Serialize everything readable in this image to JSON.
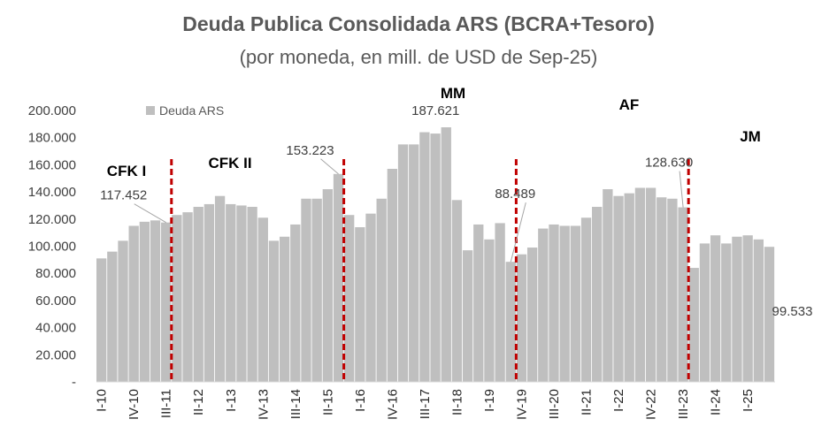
{
  "chart_data": {
    "type": "bar",
    "title": "Deuda Publica Consolidada ARS (BCRA+Tesoro)",
    "subtitle": "(por moneda, en mill. de USD de Sep-25)",
    "series": [
      {
        "name": "Deuda ARS",
        "values": [
          91000,
          96000,
          104000,
          115000,
          118000,
          119000,
          117452,
          123000,
          125000,
          129000,
          131000,
          137000,
          131000,
          130000,
          129000,
          121000,
          104000,
          107000,
          116000,
          135000,
          135000,
          142000,
          153223,
          123000,
          114000,
          124000,
          135000,
          157000,
          175000,
          175000,
          184000,
          183000,
          187621,
          134000,
          97000,
          116000,
          105000,
          117000,
          88489,
          94000,
          99000,
          113000,
          116000,
          115000,
          115000,
          121000,
          129000,
          142000,
          137000,
          139000,
          143000,
          143000,
          136000,
          135000,
          128630,
          84000,
          102000,
          108000,
          102000,
          107000,
          108000,
          105000,
          99533
        ]
      }
    ],
    "x_tick_labels": [
      "I-10",
      "IV-10",
      "III-11",
      "II-12",
      "I-13",
      "IV-13",
      "III-14",
      "II-15",
      "I-16",
      "IV-16",
      "III-17",
      "II-18",
      "I-19",
      "IV-19",
      "III-20",
      "II-21",
      "I-22",
      "IV-22",
      "III-23",
      "II-24",
      "I-25"
    ],
    "ylim": [
      0,
      200000
    ],
    "y_tick_labels": [
      "-",
      "20.000",
      "40.000",
      "60.000",
      "80.000",
      "100.000",
      "120.000",
      "140.000",
      "160.000",
      "180.000",
      "200.000"
    ],
    "data_labels": [
      {
        "text": "117.452",
        "index": 6
      },
      {
        "text": "153.223",
        "index": 22
      },
      {
        "text": "187.621",
        "index": 32
      },
      {
        "text": "88.489",
        "index": 38
      },
      {
        "text": "128.630",
        "index": 54
      },
      {
        "text": "99.533",
        "index": 62
      }
    ],
    "era_labels": [
      {
        "text": "CFK I",
        "index": 0
      },
      {
        "text": "CFK II",
        "index": 7
      },
      {
        "text": "MM",
        "index": 23
      },
      {
        "text": "AF",
        "index": 39
      },
      {
        "text": "JM",
        "index": 55
      }
    ],
    "era_boundaries_after_index": [
      6,
      22,
      38,
      54
    ],
    "legend": "top-left",
    "grid": false,
    "colors": {
      "bars": "#bfbfbf",
      "divider": "#c00000",
      "text": "#595959"
    }
  }
}
